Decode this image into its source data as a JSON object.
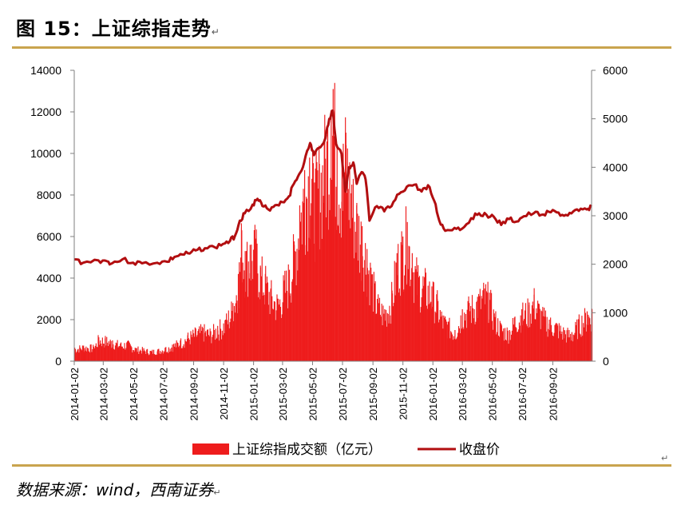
{
  "figure": {
    "title": "图 15：上证综指走势",
    "title_mark": "↵",
    "source": "数据来源：wind，西南证券",
    "source_mark": "↵",
    "para_mark": "↵"
  },
  "colors": {
    "bar": "#ee1c1c",
    "line": "#b20e10",
    "rule": "#c9a44e",
    "axis": "#7f7f7f"
  },
  "chart_data": {
    "type": "bar",
    "x_ticks": [
      "2014-01-02",
      "2014-03-02",
      "2014-05-02",
      "2014-07-02",
      "2014-09-02",
      "2014-11-02",
      "2015-01-02",
      "2015-03-02",
      "2015-05-02",
      "2015-07-02",
      "2015-09-02",
      "2015-11-02",
      "2016-01-02",
      "2016-03-02",
      "2016-05-02",
      "2016-07-02",
      "2016-09-02"
    ],
    "y_left_ticks": [
      "0",
      "2000",
      "4000",
      "6000",
      "8000",
      "10000",
      "12000",
      "14000"
    ],
    "y_right_ticks": [
      "0",
      "1000",
      "2000",
      "3000",
      "4000",
      "5000",
      "6000"
    ],
    "ylim_left": [
      0,
      14000
    ],
    "ylim_right": [
      0,
      6000
    ],
    "x_range": [
      "2014-01-02",
      "2016-11-20"
    ],
    "legend_position": "bottom",
    "series": [
      {
        "name": "上证综指成交额（亿元）",
        "axis": "left",
        "type": "bar",
        "points": [
          [
            "2014-01-02",
            650
          ],
          [
            "2014-01-20",
            750
          ],
          [
            "2014-02-10",
            700
          ],
          [
            "2014-02-20",
            1150
          ],
          [
            "2014-03-05",
            1100
          ],
          [
            "2014-03-20",
            1000
          ],
          [
            "2014-04-05",
            850
          ],
          [
            "2014-04-20",
            900
          ],
          [
            "2014-05-05",
            650
          ],
          [
            "2014-05-20",
            600
          ],
          [
            "2014-06-05",
            500
          ],
          [
            "2014-06-20",
            550
          ],
          [
            "2014-07-05",
            650
          ],
          [
            "2014-07-20",
            800
          ],
          [
            "2014-08-05",
            1000
          ],
          [
            "2014-08-20",
            1250
          ],
          [
            "2014-09-05",
            1450
          ],
          [
            "2014-09-20",
            1600
          ],
          [
            "2014-10-05",
            1450
          ],
          [
            "2014-10-20",
            1700
          ],
          [
            "2014-11-05",
            2000
          ],
          [
            "2014-11-20",
            2800
          ],
          [
            "2014-12-01",
            4200
          ],
          [
            "2014-12-08",
            6300
          ],
          [
            "2014-12-15",
            5300
          ],
          [
            "2014-12-25",
            5600
          ],
          [
            "2015-01-05",
            5900
          ],
          [
            "2015-01-15",
            4600
          ],
          [
            "2015-01-25",
            4200
          ],
          [
            "2015-02-05",
            3500
          ],
          [
            "2015-02-20",
            3000
          ],
          [
            "2015-03-05",
            3900
          ],
          [
            "2015-03-15",
            4400
          ],
          [
            "2015-03-25",
            5600
          ],
          [
            "2015-04-05",
            7500
          ],
          [
            "2015-04-15",
            9200
          ],
          [
            "2015-04-25",
            9800
          ],
          [
            "2015-05-05",
            8600
          ],
          [
            "2015-05-15",
            9500
          ],
          [
            "2015-05-25",
            10500
          ],
          [
            "2015-06-01",
            11200
          ],
          [
            "2015-06-08",
            12000
          ],
          [
            "2015-06-12",
            13100
          ],
          [
            "2015-06-20",
            10400
          ],
          [
            "2015-06-30",
            9600
          ],
          [
            "2015-07-08",
            11000
          ],
          [
            "2015-07-20",
            8500
          ],
          [
            "2015-07-30",
            7500
          ],
          [
            "2015-08-10",
            6500
          ],
          [
            "2015-08-20",
            5400
          ],
          [
            "2015-08-28",
            4500
          ],
          [
            "2015-09-10",
            3000
          ],
          [
            "2015-09-25",
            2500
          ],
          [
            "2015-10-10",
            3400
          ],
          [
            "2015-10-20",
            5200
          ],
          [
            "2015-11-01",
            6000
          ],
          [
            "2015-11-10",
            6700
          ],
          [
            "2015-11-20",
            5200
          ],
          [
            "2015-12-01",
            4300
          ],
          [
            "2015-12-15",
            4000
          ],
          [
            "2015-12-30",
            3600
          ],
          [
            "2016-01-10",
            3000
          ],
          [
            "2016-01-20",
            2200
          ],
          [
            "2016-02-01",
            1900
          ],
          [
            "2016-02-15",
            1500
          ],
          [
            "2016-03-01",
            2500
          ],
          [
            "2016-03-15",
            2800
          ],
          [
            "2016-04-01",
            3100
          ],
          [
            "2016-04-15",
            3500
          ],
          [
            "2016-04-25",
            3300
          ],
          [
            "2016-05-05",
            2300
          ],
          [
            "2016-05-20",
            1700
          ],
          [
            "2016-06-05",
            1500
          ],
          [
            "2016-06-15",
            2100
          ],
          [
            "2016-06-30",
            2500
          ],
          [
            "2016-07-15",
            2700
          ],
          [
            "2016-07-25",
            3200
          ],
          [
            "2016-08-10",
            2400
          ],
          [
            "2016-08-25",
            2000
          ],
          [
            "2016-09-10",
            1800
          ],
          [
            "2016-09-25",
            1500
          ],
          [
            "2016-10-10",
            1400
          ],
          [
            "2016-10-25",
            2000
          ],
          [
            "2016-11-10",
            2400
          ],
          [
            "2016-11-20",
            2500
          ]
        ]
      },
      {
        "name": "收盘价",
        "axis": "right",
        "type": "line",
        "points": [
          [
            "2014-01-02",
            2100
          ],
          [
            "2014-01-20",
            2030
          ],
          [
            "2014-02-20",
            2080
          ],
          [
            "2014-03-10",
            2060
          ],
          [
            "2014-03-20",
            2020
          ],
          [
            "2014-04-10",
            2100
          ],
          [
            "2014-05-02",
            2030
          ],
          [
            "2014-05-20",
            2020
          ],
          [
            "2014-06-20",
            2030
          ],
          [
            "2014-07-10",
            2050
          ],
          [
            "2014-07-25",
            2150
          ],
          [
            "2014-08-10",
            2200
          ],
          [
            "2014-08-25",
            2220
          ],
          [
            "2014-09-10",
            2300
          ],
          [
            "2014-09-25",
            2330
          ],
          [
            "2014-10-15",
            2350
          ],
          [
            "2014-11-01",
            2420
          ],
          [
            "2014-11-15",
            2480
          ],
          [
            "2014-11-25",
            2580
          ],
          [
            "2014-12-05",
            2900
          ],
          [
            "2014-12-15",
            3050
          ],
          [
            "2014-12-31",
            3230
          ],
          [
            "2015-01-10",
            3350
          ],
          [
            "2015-01-20",
            3200
          ],
          [
            "2015-02-01",
            3130
          ],
          [
            "2015-02-15",
            3220
          ],
          [
            "2015-03-02",
            3280
          ],
          [
            "2015-03-15",
            3400
          ],
          [
            "2015-03-25",
            3660
          ],
          [
            "2015-04-05",
            3860
          ],
          [
            "2015-04-15",
            4100
          ],
          [
            "2015-04-27",
            4500
          ],
          [
            "2015-05-05",
            4250
          ],
          [
            "2015-05-15",
            4400
          ],
          [
            "2015-05-28",
            4600
          ],
          [
            "2015-06-05",
            5000
          ],
          [
            "2015-06-12",
            5170
          ],
          [
            "2015-06-19",
            4480
          ],
          [
            "2015-06-30",
            4280
          ],
          [
            "2015-07-08",
            3500
          ],
          [
            "2015-07-15",
            4000
          ],
          [
            "2015-07-24",
            4100
          ],
          [
            "2015-07-31",
            3660
          ],
          [
            "2015-08-10",
            3900
          ],
          [
            "2015-08-18",
            3750
          ],
          [
            "2015-08-26",
            2900
          ],
          [
            "2015-09-10",
            3200
          ],
          [
            "2015-09-25",
            3090
          ],
          [
            "2015-10-10",
            3200
          ],
          [
            "2015-10-25",
            3450
          ],
          [
            "2015-11-10",
            3600
          ],
          [
            "2015-11-25",
            3640
          ],
          [
            "2015-12-10",
            3500
          ],
          [
            "2015-12-23",
            3630
          ],
          [
            "2016-01-05",
            3300
          ],
          [
            "2016-01-15",
            2900
          ],
          [
            "2016-01-27",
            2690
          ],
          [
            "2016-02-15",
            2750
          ],
          [
            "2016-03-01",
            2730
          ],
          [
            "2016-03-20",
            2950
          ],
          [
            "2016-04-05",
            3050
          ],
          [
            "2016-04-20",
            3020
          ],
          [
            "2016-05-05",
            2980
          ],
          [
            "2016-05-20",
            2810
          ],
          [
            "2016-06-05",
            2930
          ],
          [
            "2016-06-20",
            2880
          ],
          [
            "2016-07-05",
            2990
          ],
          [
            "2016-07-25",
            3050
          ],
          [
            "2016-08-10",
            3020
          ],
          [
            "2016-08-25",
            3080
          ],
          [
            "2016-09-10",
            3070
          ],
          [
            "2016-09-25",
            3000
          ],
          [
            "2016-10-10",
            3050
          ],
          [
            "2016-10-25",
            3100
          ],
          [
            "2016-11-10",
            3130
          ],
          [
            "2016-11-20",
            3190
          ]
        ]
      }
    ]
  }
}
